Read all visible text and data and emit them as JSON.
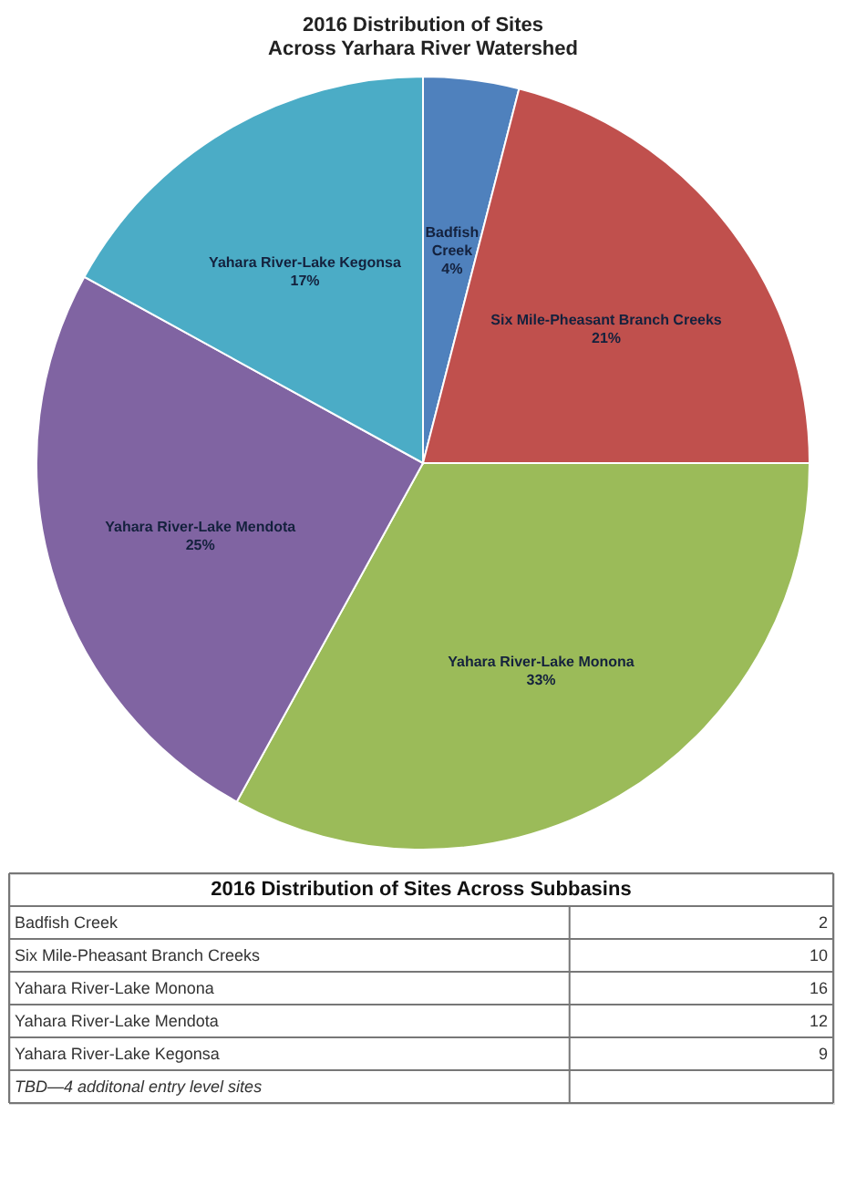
{
  "chart_data": [
    {
      "type": "pie",
      "title": "2016 Distribution of Sites Across Yarhara River Watershed",
      "categories": [
        "Badfish Creek",
        "Six Mile-Pheasant Branch Creeks",
        "Yahara River-Lake Monona",
        "Yahara River-Lake Mendota",
        "Yahara River-Lake Kegonsa"
      ],
      "values": [
        4,
        21,
        33,
        25,
        17
      ],
      "value_labels": [
        "4%",
        "21%",
        "33%",
        "25%",
        "17%"
      ],
      "colors": [
        "#4f81bd",
        "#c0504d",
        "#9bbb59",
        "#8064a2",
        "#4bacc6"
      ]
    },
    {
      "type": "other",
      "title": "2016 Distribution of Sites Across Subbasins",
      "categories": [
        "Badfish Creek",
        "Six Mile-Pheasant Branch Creeks",
        "Yahara River-Lake Monona",
        "Yahara River-Lake Mendota",
        "Yahara River-Lake Kegonsa"
      ],
      "values": [
        2,
        10,
        16,
        12,
        9
      ],
      "data_labels": true,
      "annotations": [
        "TBD—4 additonal entry level sites"
      ]
    }
  ]
}
